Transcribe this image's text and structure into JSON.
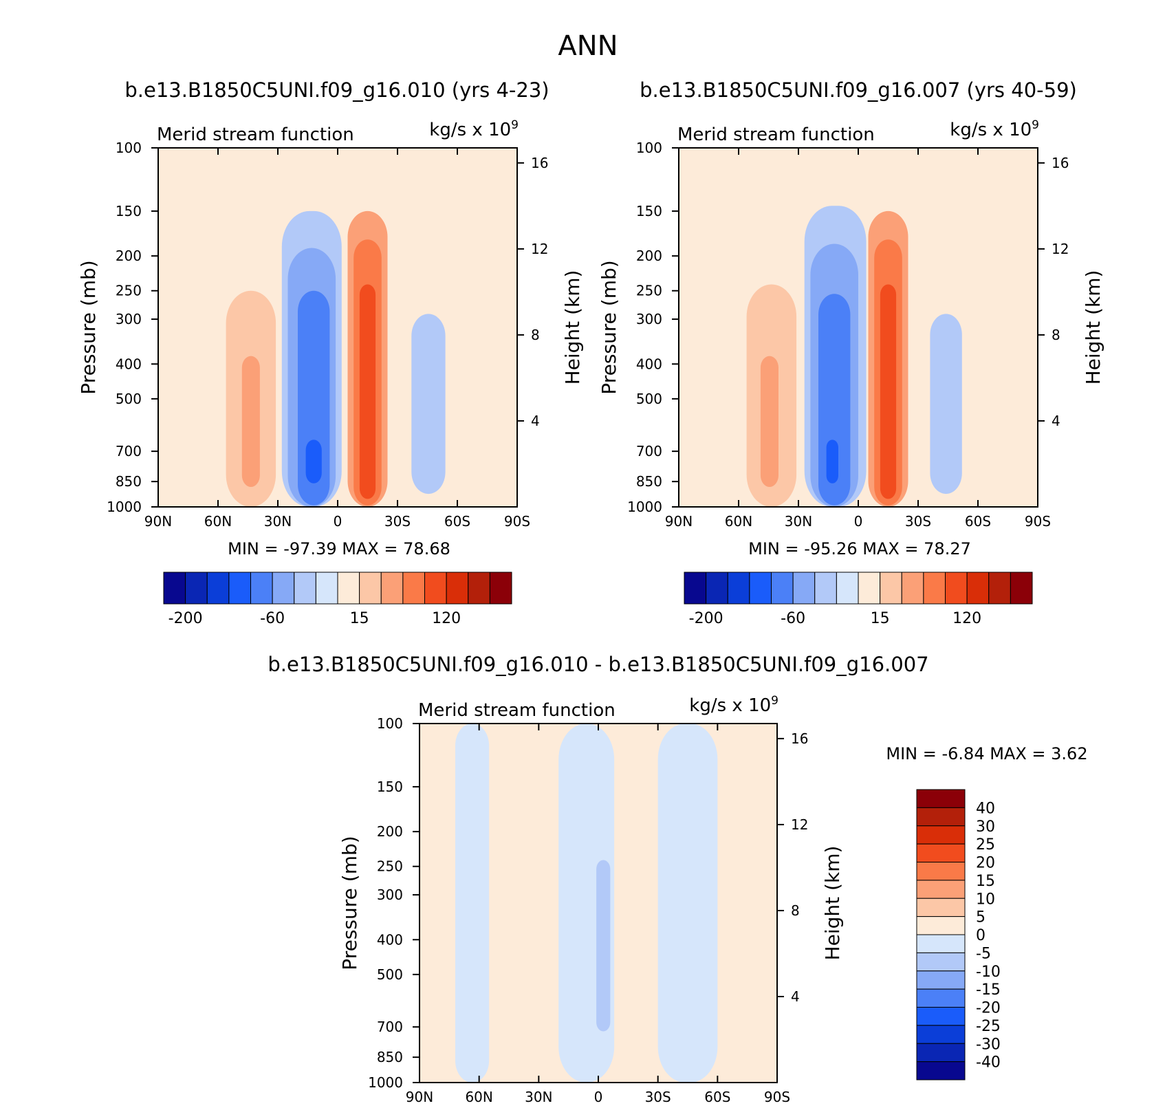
{
  "figure_title": "ANN",
  "units": {
    "base": "kg/s x 10",
    "exponent": "9"
  },
  "chart_data": [
    {
      "type": "heatmap",
      "case_title": "b.e13.B1850C5UNI.f09_g16.010 (yrs 4-23)",
      "title": "Merid stream function",
      "xlabel": "",
      "ylabel": "Pressure (mb)",
      "y2label": "Height (km)",
      "xticks": [
        "90N",
        "60N",
        "30N",
        "0",
        "30S",
        "60S",
        "90S"
      ],
      "yticks": [
        "100",
        "150",
        "200",
        "250",
        "300",
        "400",
        "500",
        "700",
        "850",
        "1000"
      ],
      "y2ticks": [
        "16",
        "12",
        "8",
        "4"
      ],
      "ylim": [
        1000,
        100
      ],
      "y_scale": "log",
      "min": "-97.39",
      "max": "78.68",
      "colorbar_labels": [
        "-200",
        "-60",
        "15",
        "120"
      ],
      "cells": [
        {
          "lat": [
            -25,
            -5
          ],
          "p": [
            150,
            1000
          ],
          "level": 10
        },
        {
          "lat": [
            -22,
            -8
          ],
          "p": [
            180,
            990
          ],
          "level": 11
        },
        {
          "lat": [
            -19,
            -11
          ],
          "p": [
            240,
            950
          ],
          "level": 12
        },
        {
          "lat": [
            -2,
            28
          ],
          "p": [
            150,
            1000
          ],
          "level": 6
        },
        {
          "lat": [
            1,
            25
          ],
          "p": [
            190,
            1000
          ],
          "level": 5
        },
        {
          "lat": [
            4,
            20
          ],
          "p": [
            250,
            990
          ],
          "level": 4
        },
        {
          "lat": [
            8,
            16
          ],
          "p": [
            650,
            860
          ],
          "level": 3
        },
        {
          "lat": [
            31,
            56
          ],
          "p": [
            250,
            1000
          ],
          "level": 9
        },
        {
          "lat": [
            39,
            48
          ],
          "p": [
            380,
            880
          ],
          "level": 10
        },
        {
          "lat": [
            -54,
            -37
          ],
          "p": [
            290,
            920
          ],
          "level": 6
        }
      ]
    },
    {
      "type": "heatmap",
      "case_title": "b.e13.B1850C5UNI.f09_g16.007 (yrs 40-59)",
      "title": "Merid stream function",
      "xlabel": "",
      "ylabel": "Pressure (mb)",
      "y2label": "Height (km)",
      "xticks": [
        "90N",
        "60N",
        "30N",
        "0",
        "30S",
        "60S",
        "90S"
      ],
      "yticks": [
        "100",
        "150",
        "200",
        "250",
        "300",
        "400",
        "500",
        "700",
        "850",
        "1000"
      ],
      "y2ticks": [
        "16",
        "12",
        "8",
        "4"
      ],
      "ylim": [
        1000,
        100
      ],
      "y_scale": "log",
      "min": "-95.26",
      "max": "78.27",
      "colorbar_labels": [
        "-200",
        "-60",
        "15",
        "120"
      ],
      "cells": [
        {
          "lat": [
            -25,
            -5
          ],
          "p": [
            150,
            1000
          ],
          "level": 10
        },
        {
          "lat": [
            -22,
            -8
          ],
          "p": [
            180,
            990
          ],
          "level": 11
        },
        {
          "lat": [
            -19,
            -11
          ],
          "p": [
            240,
            950
          ],
          "level": 12
        },
        {
          "lat": [
            -4,
            27
          ],
          "p": [
            145,
            1000
          ],
          "level": 6
        },
        {
          "lat": [
            0,
            24
          ],
          "p": [
            185,
            1000
          ],
          "level": 5
        },
        {
          "lat": [
            4,
            20
          ],
          "p": [
            255,
            990
          ],
          "level": 4
        },
        {
          "lat": [
            10,
            16
          ],
          "p": [
            650,
            860
          ],
          "level": 3
        },
        {
          "lat": [
            31,
            56
          ],
          "p": [
            240,
            1000
          ],
          "level": 9
        },
        {
          "lat": [
            40,
            49
          ],
          "p": [
            380,
            880
          ],
          "level": 10
        },
        {
          "lat": [
            -52,
            -36
          ],
          "p": [
            290,
            920
          ],
          "level": 6
        }
      ]
    },
    {
      "type": "heatmap",
      "case_title": "b.e13.B1850C5UNI.f09_g16.010 - b.e13.B1850C5UNI.f09_g16.007",
      "title": "Merid stream function",
      "xlabel": "",
      "ylabel": "Pressure (mb)",
      "y2label": "Height (km)",
      "xticks": [
        "90N",
        "60N",
        "30N",
        "0",
        "30S",
        "60S",
        "90S"
      ],
      "yticks": [
        "100",
        "150",
        "200",
        "250",
        "300",
        "400",
        "500",
        "700",
        "850",
        "1000"
      ],
      "y2ticks": [
        "16",
        "12",
        "8",
        "4"
      ],
      "ylim": [
        1000,
        100
      ],
      "y_scale": "log",
      "min": "-6.84",
      "max": "3.62",
      "colorbar_labels": [
        "40",
        "30",
        "25",
        "20",
        "15",
        "10",
        "5",
        "0",
        "-5",
        "-10",
        "-15",
        "-20",
        "-25",
        "-30",
        "-40"
      ],
      "cells": [
        {
          "lat": [
            -60,
            -30
          ],
          "p": [
            100,
            1000
          ],
          "level": 7
        },
        {
          "lat": [
            -8,
            20
          ],
          "p": [
            100,
            1000
          ],
          "level": 7
        },
        {
          "lat": [
            55,
            72
          ],
          "p": [
            100,
            1000
          ],
          "level": 7
        },
        {
          "lat": [
            -6,
            1
          ],
          "p": [
            240,
            720
          ],
          "level": 6
        }
      ]
    }
  ],
  "colors": {
    "panel_background": "#fdebd9",
    "diff_scale": [
      "#08088f",
      "#0a26b4",
      "#0b3ed8",
      "#1a5cfa",
      "#4b80f7",
      "#86a9f6",
      "#b2c9f8",
      "#d6e6fb",
      "#fdebd9",
      "#fcc7a7",
      "#fba077",
      "#fa7a48",
      "#f14c1e",
      "#d92e08",
      "#b3200a",
      "#8b0008"
    ]
  }
}
